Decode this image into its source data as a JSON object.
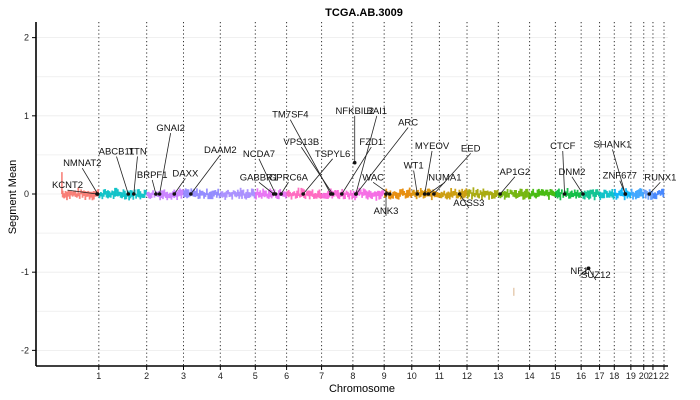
{
  "chart_data": {
    "type": "scatter",
    "title": "TCGA.AB.3009",
    "xlabel": "Chromosome",
    "ylabel": "Segment Mean",
    "ylim": [
      -2.2,
      2.2
    ],
    "y_ticks": [
      -2,
      -1,
      0,
      1,
      2
    ],
    "grid": true,
    "legend": "none",
    "chromosomes": [
      {
        "name": "1",
        "start": 0,
        "end": 1,
        "color": "#f8766d"
      },
      {
        "name": "2",
        "start": 1,
        "end": 2.3,
        "color": "#00bfc4"
      },
      {
        "name": "3",
        "start": 2.3,
        "end": 3.3,
        "color": "#c77cff"
      },
      {
        "name": "4",
        "start": 3.3,
        "end": 4.3,
        "color": "#8c84ff"
      },
      {
        "name": "5",
        "start": 4.3,
        "end": 5.25,
        "color": "#a58aff"
      },
      {
        "name": "6",
        "start": 5.25,
        "end": 6.1,
        "color": "#e76bf3"
      },
      {
        "name": "7",
        "start": 6.1,
        "end": 7.05,
        "color": "#ff62bc"
      },
      {
        "name": "8",
        "start": 7.05,
        "end": 7.9,
        "color": "#fb61d7"
      },
      {
        "name": "9",
        "start": 7.9,
        "end": 8.75,
        "color": "#f564e3"
      },
      {
        "name": "10",
        "start": 8.75,
        "end": 9.5,
        "color": "#e58700"
      },
      {
        "name": "11",
        "start": 9.5,
        "end": 10.25,
        "color": "#d89000"
      },
      {
        "name": "12",
        "start": 10.25,
        "end": 11.0,
        "color": "#c99800"
      },
      {
        "name": "13",
        "start": 11.0,
        "end": 11.85,
        "color": "#a3a500"
      },
      {
        "name": "14",
        "start": 11.85,
        "end": 12.7,
        "color": "#6bb100"
      },
      {
        "name": "15",
        "start": 12.7,
        "end": 13.4,
        "color": "#39b600"
      },
      {
        "name": "16",
        "start": 13.4,
        "end": 14.1,
        "color": "#00ba38"
      },
      {
        "name": "17",
        "start": 14.1,
        "end": 14.6,
        "color": "#00c08b"
      },
      {
        "name": "18",
        "start": 14.6,
        "end": 15.0,
        "color": "#00bfc4"
      },
      {
        "name": "19",
        "start": 15.0,
        "end": 15.45,
        "color": "#00b0f6"
      },
      {
        "name": "20",
        "start": 15.45,
        "end": 15.8,
        "color": "#35a2ff"
      },
      {
        "name": "21",
        "start": 15.8,
        "end": 16.05,
        "color": "#619cff"
      },
      {
        "name": "22",
        "start": 16.05,
        "end": 16.35,
        "color": "#3b7fff"
      }
    ],
    "genes": [
      {
        "name": "KCNT2",
        "x": 0.95,
        "y": 0,
        "lx": 0.15,
        "ly": 0.05
      },
      {
        "name": "NMNAT2",
        "x": 0.97,
        "y": 0,
        "lx": 0.55,
        "ly": 0.33
      },
      {
        "name": "ABCB11",
        "x": 1.8,
        "y": 0,
        "lx": 1.48,
        "ly": 0.48
      },
      {
        "name": "TTN",
        "x": 1.95,
        "y": 0,
        "lx": 2.05,
        "ly": 0.48
      },
      {
        "name": "BRPF1",
        "x": 2.55,
        "y": 0,
        "lx": 2.45,
        "ly": 0.18
      },
      {
        "name": "GNAI2",
        "x": 2.65,
        "y": 0,
        "lx": 2.95,
        "ly": 0.78
      },
      {
        "name": "DAXX",
        "x": 3.05,
        "y": 0,
        "lx": 3.35,
        "ly": 0.2
      },
      {
        "name": "DAAM2",
        "x": 3.5,
        "y": 0,
        "lx": 4.3,
        "ly": 0.5
      },
      {
        "name": "GABBR1",
        "x": 5.75,
        "y": 0,
        "lx": 5.35,
        "ly": 0.15
      },
      {
        "name": "NCDA7",
        "x": 5.8,
        "y": 0,
        "lx": 5.35,
        "ly": 0.45
      },
      {
        "name": "GPRC6A",
        "x": 5.95,
        "y": 0,
        "lx": 6.15,
        "ly": 0.15
      },
      {
        "name": "TM7SF4",
        "x": 7.3,
        "y": 0,
        "lx": 6.2,
        "ly": 0.95
      },
      {
        "name": "VPS13B",
        "x": 7.35,
        "y": 0,
        "lx": 6.5,
        "ly": 0.6
      },
      {
        "name": "TSPYL6",
        "x": 6.55,
        "y": 0,
        "lx": 7.35,
        "ly": 0.45
      },
      {
        "name": "NFKBIL2",
        "x": 7.95,
        "y": 0.4,
        "lx": 7.95,
        "ly": 1.0
      },
      {
        "name": "BAI1",
        "x": 7.98,
        "y": 0,
        "lx": 8.55,
        "ly": 1.0
      },
      {
        "name": "FZD1",
        "x": 7.6,
        "y": 0,
        "lx": 8.4,
        "ly": 0.6
      },
      {
        "name": "ARC",
        "x": 7.99,
        "y": 0,
        "lx": 9.4,
        "ly": 0.85
      },
      {
        "name": "WAC",
        "x": 8.9,
        "y": 0,
        "lx": 8.45,
        "ly": 0.15
      },
      {
        "name": "ANK3",
        "x": 8.8,
        "y": 0,
        "lx": 8.8,
        "ly": -0.28
      },
      {
        "name": "WT1",
        "x": 9.65,
        "y": 0,
        "lx": 9.55,
        "ly": 0.3
      },
      {
        "name": "MYEOV",
        "x": 9.85,
        "y": 0,
        "lx": 10.05,
        "ly": 0.55
      },
      {
        "name": "NUMA1",
        "x": 9.95,
        "y": 0,
        "lx": 10.4,
        "ly": 0.15
      },
      {
        "name": "EED",
        "x": 10.1,
        "y": 0,
        "lx": 11.1,
        "ly": 0.52
      },
      {
        "name": "ACSS3",
        "x": 10.8,
        "y": 0,
        "lx": 11.05,
        "ly": -0.18
      },
      {
        "name": "AP1G2",
        "x": 11.9,
        "y": 0,
        "lx": 12.3,
        "ly": 0.22
      },
      {
        "name": "CTCF",
        "x": 13.65,
        "y": 0,
        "lx": 13.6,
        "ly": 0.55
      },
      {
        "name": "DNM2",
        "x": 14.15,
        "y": 0,
        "lx": 13.85,
        "ly": 0.22
      },
      {
        "name": "NF1",
        "x": 14.3,
        "y": -0.95,
        "lx": 14.05,
        "ly": -1.05
      },
      {
        "name": "SUZ12",
        "x": 14.3,
        "y": -0.95,
        "lx": 14.5,
        "ly": -1.1
      },
      {
        "name": "SHANK1",
        "x": 15.3,
        "y": 0,
        "lx": 14.95,
        "ly": 0.57
      },
      {
        "name": "ZNF677",
        "x": 15.3,
        "y": 0,
        "lx": 15.15,
        "ly": 0.17
      },
      {
        "name": "RUNX1",
        "x": 15.95,
        "y": 0,
        "lx": 16.25,
        "ly": 0.15
      }
    ]
  }
}
